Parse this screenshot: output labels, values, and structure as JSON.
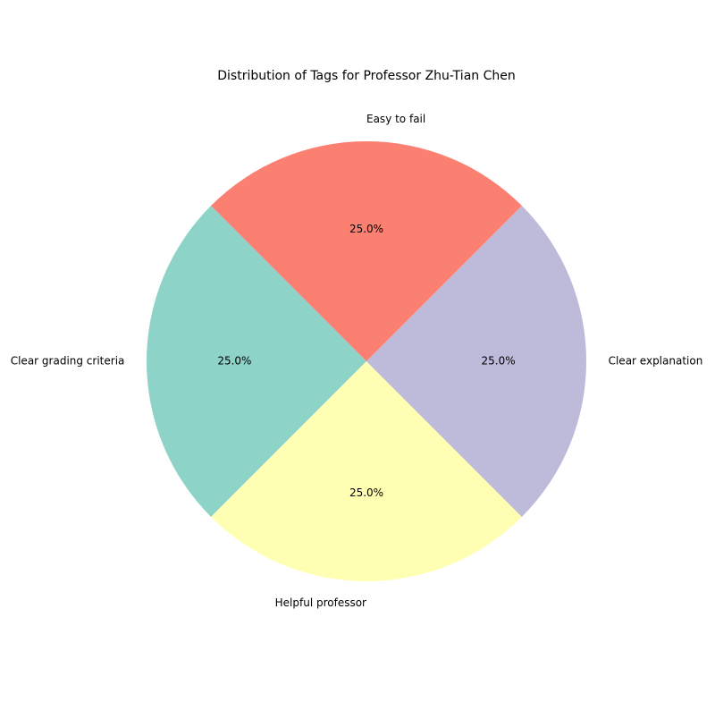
{
  "chart_data": {
    "type": "pie",
    "title": "Distribution of Tags for Professor Zhu-Tian Chen",
    "start_angle_deg": 135,
    "direction": "counterclockwise",
    "slices": [
      {
        "label": "Clear grading criteria",
        "value": 25.0,
        "pct_text": "25.0%",
        "color": "#8dd3c7"
      },
      {
        "label": "Helpful professor",
        "value": 25.0,
        "pct_text": "25.0%",
        "color": "#ffffb3"
      },
      {
        "label": "Clear explanation",
        "value": 25.0,
        "pct_text": "25.0%",
        "color": "#bebada"
      },
      {
        "label": "Easy to fail",
        "value": 25.0,
        "pct_text": "25.0%",
        "color": "#fb8072"
      }
    ]
  }
}
